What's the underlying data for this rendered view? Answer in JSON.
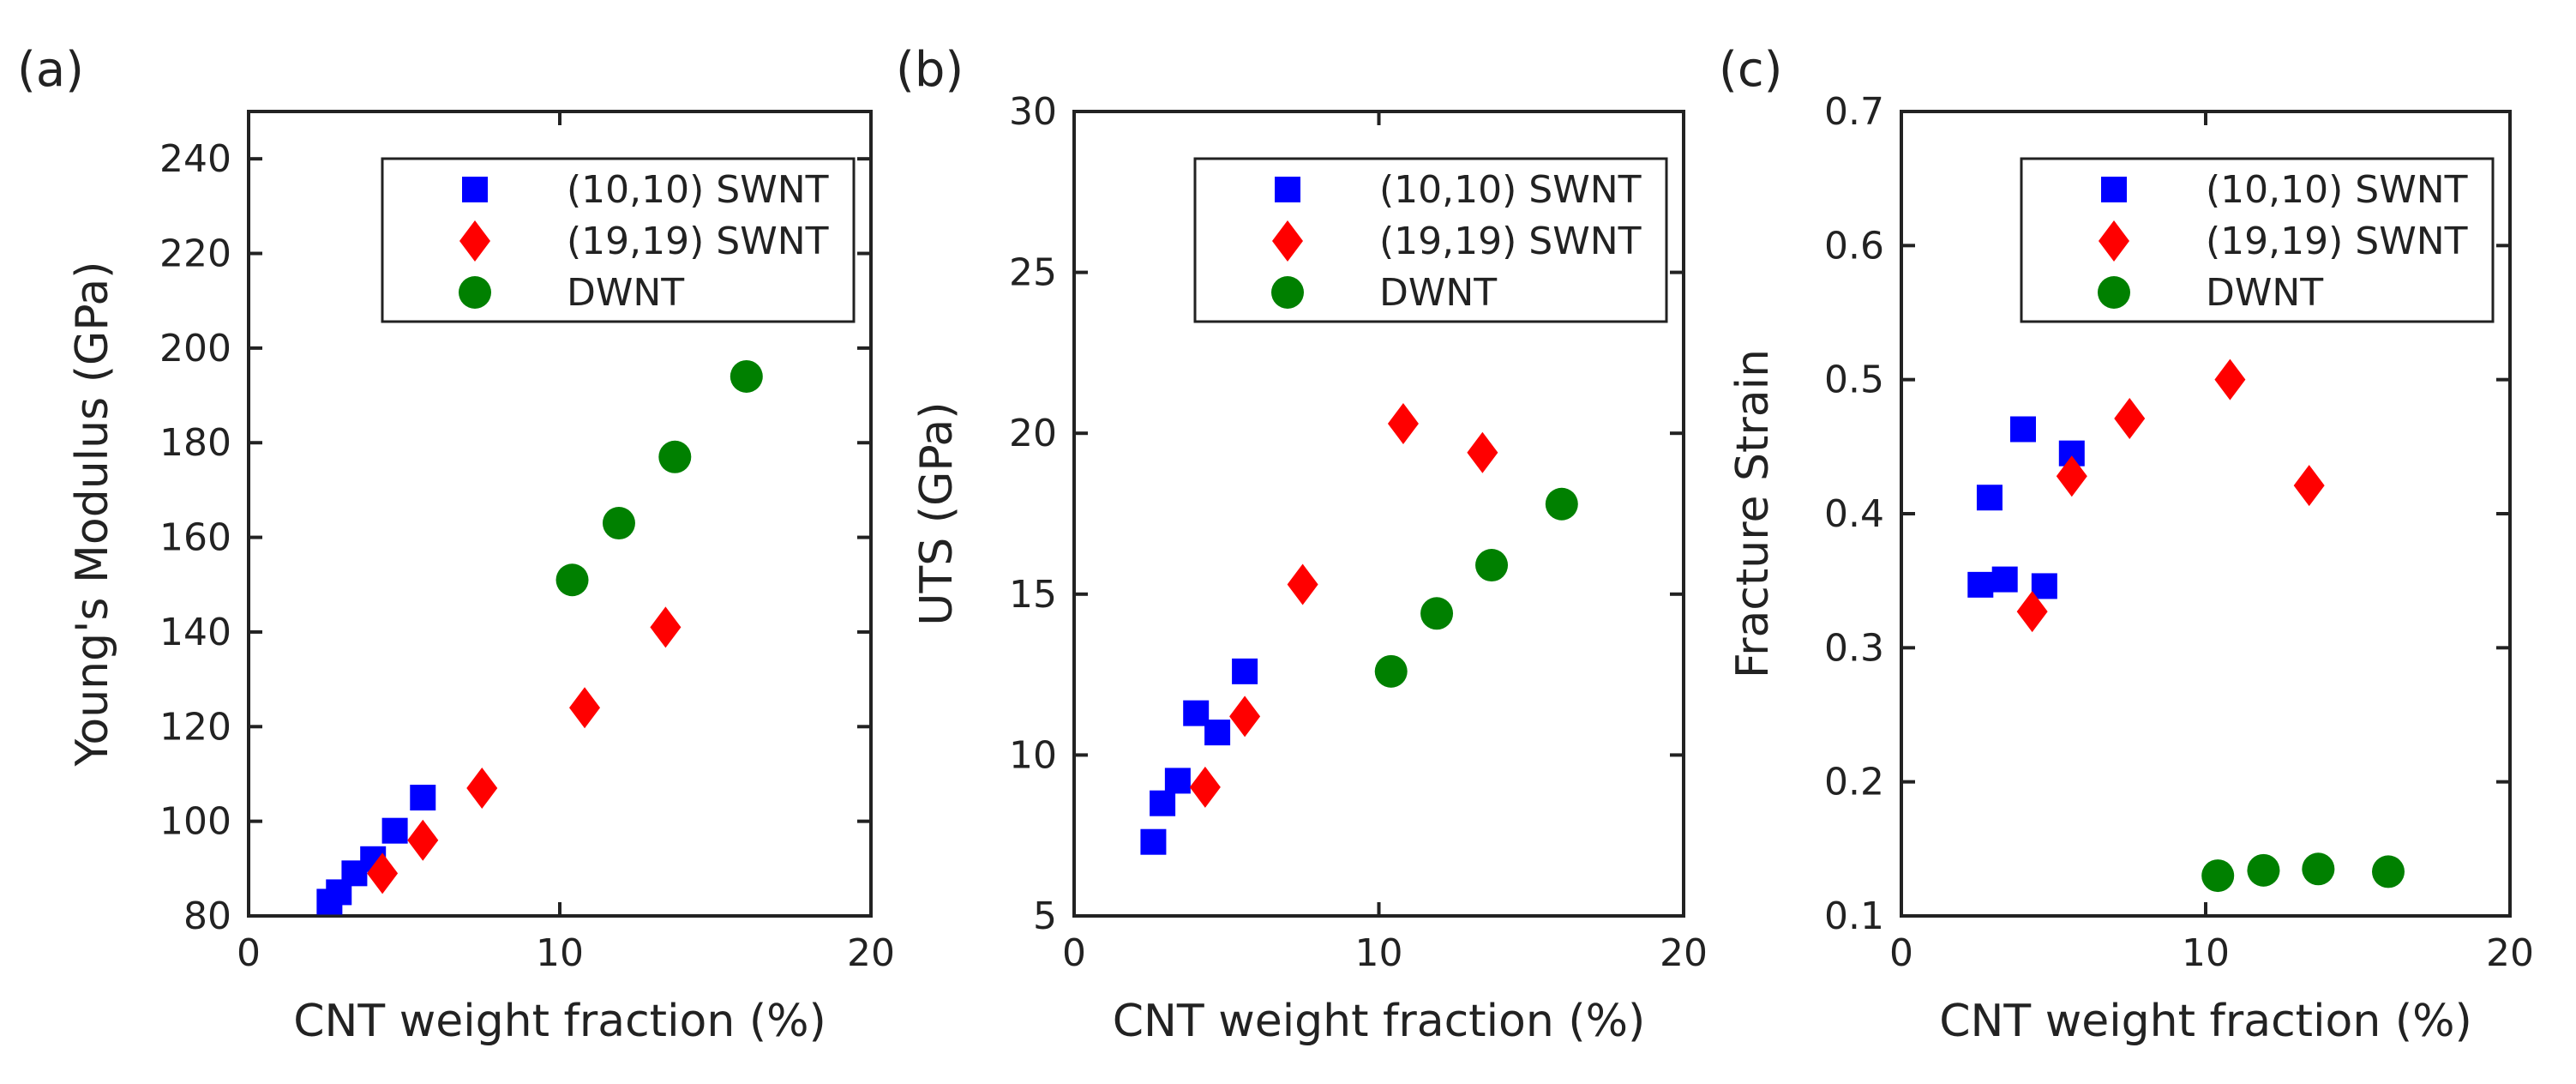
{
  "colors": {
    "swnt_10": "#0000FF",
    "swnt_19": "#FF0000",
    "dwnt": "#008000",
    "axis": "#222222"
  },
  "chart_data": [
    {
      "type": "scatter",
      "panel_label": "(a)",
      "title": "",
      "xlabel": "CNT weight fraction (%)",
      "ylabel": "Young's Modulus (GPa)",
      "xlim": [
        0,
        20
      ],
      "ylim": [
        80,
        250
      ],
      "xticks": [
        0,
        10,
        20
      ],
      "yticks": [
        80,
        100,
        120,
        140,
        160,
        180,
        200,
        220,
        240
      ],
      "legend_position": "top-right",
      "series": [
        {
          "name": "(10,10) SWNT",
          "marker": "square",
          "color": "#0000FF",
          "points": [
            [
              2.6,
              83
            ],
            [
              2.9,
              85
            ],
            [
              3.4,
              89
            ],
            [
              4.0,
              92
            ],
            [
              4.7,
              98
            ],
            [
              5.6,
              105
            ]
          ]
        },
        {
          "name": "(19,19) SWNT",
          "marker": "diamond",
          "color": "#FF0000",
          "points": [
            [
              4.3,
              89
            ],
            [
              5.6,
              96
            ],
            [
              7.5,
              107
            ],
            [
              10.8,
              124
            ],
            [
              13.4,
              141
            ]
          ]
        },
        {
          "name": "DWNT",
          "marker": "circle",
          "color": "#008000",
          "points": [
            [
              10.4,
              151
            ],
            [
              11.9,
              163
            ],
            [
              13.7,
              177
            ],
            [
              16.0,
              194
            ]
          ]
        }
      ]
    },
    {
      "type": "scatter",
      "panel_label": "(b)",
      "title": "",
      "xlabel": "CNT weight fraction (%)",
      "ylabel": "UTS (GPa)",
      "xlim": [
        0,
        20
      ],
      "ylim": [
        5,
        30
      ],
      "xticks": [
        0,
        10,
        20
      ],
      "yticks": [
        5,
        10,
        15,
        20,
        25,
        30
      ],
      "legend_position": "top-right",
      "series": [
        {
          "name": "(10,10) SWNT",
          "marker": "square",
          "color": "#0000FF",
          "points": [
            [
              2.6,
              7.3
            ],
            [
              2.9,
              8.5
            ],
            [
              3.4,
              9.2
            ],
            [
              4.0,
              11.3
            ],
            [
              4.7,
              10.7
            ],
            [
              5.6,
              12.6
            ]
          ]
        },
        {
          "name": "(19,19) SWNT",
          "marker": "diamond",
          "color": "#FF0000",
          "points": [
            [
              4.3,
              9.0
            ],
            [
              5.6,
              11.2
            ],
            [
              7.5,
              15.3
            ],
            [
              10.8,
              20.3
            ],
            [
              13.4,
              19.4
            ]
          ]
        },
        {
          "name": "DWNT",
          "marker": "circle",
          "color": "#008000",
          "points": [
            [
              10.4,
              12.6
            ],
            [
              11.9,
              14.4
            ],
            [
              13.7,
              15.9
            ],
            [
              16.0,
              17.8
            ]
          ]
        }
      ]
    },
    {
      "type": "scatter",
      "panel_label": "(c)",
      "title": "",
      "xlabel": "CNT weight fraction (%)",
      "ylabel": "Fracture Strain",
      "xlim": [
        0,
        20
      ],
      "ylim": [
        0.1,
        0.7
      ],
      "xticks": [
        0,
        10,
        20
      ],
      "yticks": [
        0.1,
        0.2,
        0.3,
        0.4,
        0.5,
        0.6,
        0.7
      ],
      "legend_position": "top-right",
      "series": [
        {
          "name": "(10,10) SWNT",
          "marker": "square",
          "color": "#0000FF",
          "points": [
            [
              2.6,
              0.347
            ],
            [
              2.9,
              0.412
            ],
            [
              3.4,
              0.351
            ],
            [
              4.0,
              0.463
            ],
            [
              4.7,
              0.346
            ],
            [
              5.6,
              0.445
            ]
          ]
        },
        {
          "name": "(19,19) SWNT",
          "marker": "diamond",
          "color": "#FF0000",
          "points": [
            [
              4.3,
              0.327
            ],
            [
              5.6,
              0.428
            ],
            [
              7.5,
              0.471
            ],
            [
              10.8,
              0.5
            ],
            [
              13.4,
              0.421
            ]
          ]
        },
        {
          "name": "DWNT",
          "marker": "circle",
          "color": "#008000",
          "points": [
            [
              10.4,
              0.13
            ],
            [
              11.9,
              0.134
            ],
            [
              13.7,
              0.135
            ],
            [
              16.0,
              0.133
            ]
          ]
        }
      ]
    }
  ]
}
